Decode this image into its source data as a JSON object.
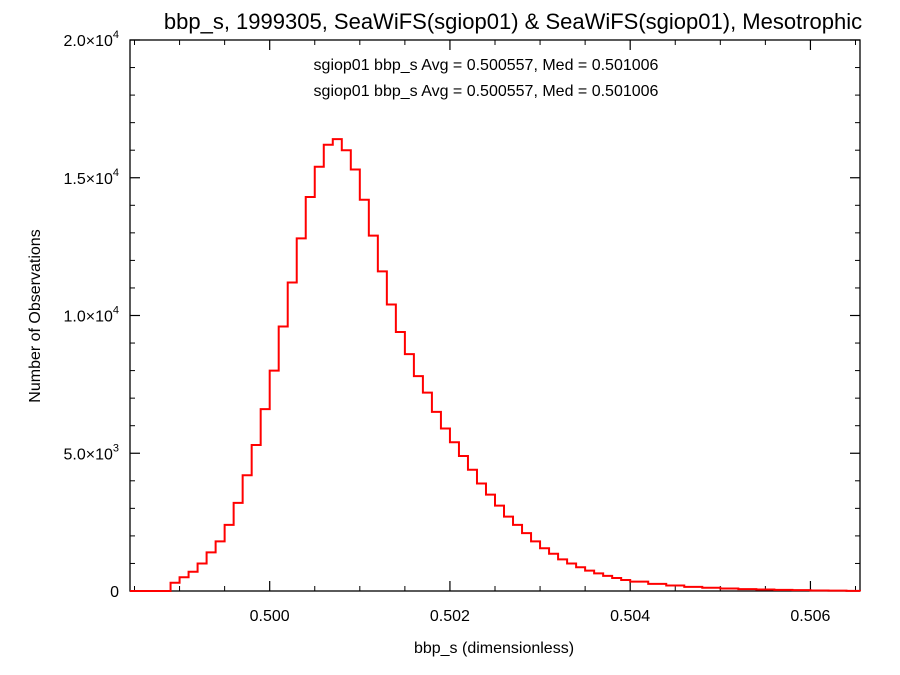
{
  "chart_data": {
    "type": "line",
    "title": "bbp_s, 1999305, SeaWiFS(sgiop01) & SeaWiFS(sgiop01), Mesotrophic",
    "xlabel": "bbp_s (dimensionless)",
    "ylabel": "Number of Observations",
    "xlim": [
      0.49845,
      0.50655
    ],
    "ylim": [
      0,
      20000
    ],
    "x_ticks": [
      {
        "value": 0.5,
        "label": "0.500"
      },
      {
        "value": 0.502,
        "label": "0.502"
      },
      {
        "value": 0.504,
        "label": "0.504"
      },
      {
        "value": 0.506,
        "label": "0.506"
      }
    ],
    "y_ticks": [
      {
        "value": 0,
        "mantissa": "0",
        "exp": ""
      },
      {
        "value": 5000,
        "mantissa": "5.0×10",
        "exp": "3"
      },
      {
        "value": 10000,
        "mantissa": "1.0×10",
        "exp": "4"
      },
      {
        "value": 15000,
        "mantissa": "1.5×10",
        "exp": "4"
      },
      {
        "value": 20000,
        "mantissa": "2.0×10",
        "exp": "4"
      }
    ],
    "annotations": [
      {
        "text": "sgiop01 bbp_s Avg = 0.500557, Med = 0.501006",
        "color": "#000000"
      },
      {
        "text": "sgiop01 bbp_s Avg = 0.500557, Med = 0.501006",
        "color": "#ff0000"
      }
    ],
    "series": [
      {
        "color": "#ff0000",
        "step": true,
        "points": [
          [
            0.4988,
            0
          ],
          [
            0.4989,
            300
          ],
          [
            0.499,
            500
          ],
          [
            0.4991,
            700
          ],
          [
            0.4992,
            1000
          ],
          [
            0.4993,
            1400
          ],
          [
            0.4994,
            1800
          ],
          [
            0.4995,
            2400
          ],
          [
            0.4996,
            3200
          ],
          [
            0.4997,
            4200
          ],
          [
            0.4998,
            5300
          ],
          [
            0.4999,
            6600
          ],
          [
            0.5,
            8000
          ],
          [
            0.5001,
            9600
          ],
          [
            0.5002,
            11200
          ],
          [
            0.5003,
            12800
          ],
          [
            0.5004,
            14300
          ],
          [
            0.5005,
            15400
          ],
          [
            0.5006,
            16200
          ],
          [
            0.5007,
            16400
          ],
          [
            0.5008,
            16000
          ],
          [
            0.5009,
            15300
          ],
          [
            0.501,
            14200
          ],
          [
            0.5011,
            12900
          ],
          [
            0.5012,
            11600
          ],
          [
            0.5013,
            10400
          ],
          [
            0.5014,
            9400
          ],
          [
            0.5015,
            8600
          ],
          [
            0.5016,
            7800
          ],
          [
            0.5017,
            7200
          ],
          [
            0.5018,
            6500
          ],
          [
            0.5019,
            5900
          ],
          [
            0.502,
            5400
          ],
          [
            0.5021,
            4900
          ],
          [
            0.5022,
            4400
          ],
          [
            0.5023,
            3900
          ],
          [
            0.5024,
            3500
          ],
          [
            0.5025,
            3100
          ],
          [
            0.5026,
            2700
          ],
          [
            0.5027,
            2400
          ],
          [
            0.5028,
            2100
          ],
          [
            0.5029,
            1800
          ],
          [
            0.503,
            1550
          ],
          [
            0.5031,
            1350
          ],
          [
            0.5032,
            1150
          ],
          [
            0.5033,
            1000
          ],
          [
            0.5034,
            860
          ],
          [
            0.5035,
            740
          ],
          [
            0.5036,
            640
          ],
          [
            0.5037,
            550
          ],
          [
            0.5038,
            470
          ],
          [
            0.5039,
            400
          ],
          [
            0.504,
            340
          ],
          [
            0.5042,
            260
          ],
          [
            0.5044,
            200
          ],
          [
            0.5046,
            150
          ],
          [
            0.5048,
            120
          ],
          [
            0.505,
            90
          ],
          [
            0.5052,
            70
          ],
          [
            0.5054,
            55
          ],
          [
            0.5056,
            40
          ],
          [
            0.5058,
            30
          ],
          [
            0.506,
            20
          ],
          [
            0.5062,
            12
          ],
          [
            0.5064,
            6
          ],
          [
            0.50655,
            4
          ]
        ]
      }
    ]
  }
}
